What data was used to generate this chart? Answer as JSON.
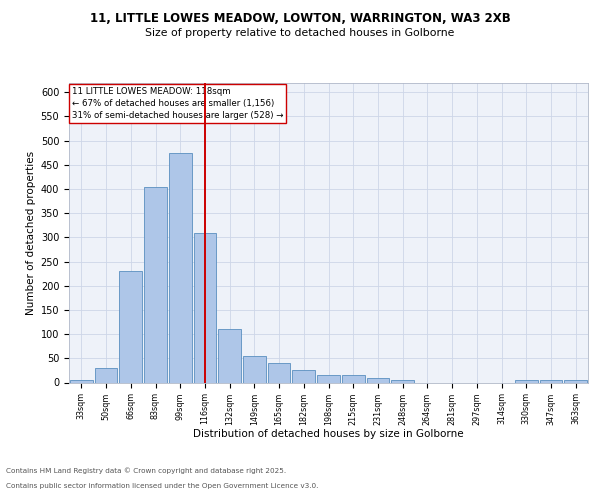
{
  "title1": "11, LITTLE LOWES MEADOW, LOWTON, WARRINGTON, WA3 2XB",
  "title2": "Size of property relative to detached houses in Golborne",
  "xlabel": "Distribution of detached houses by size in Golborne",
  "ylabel": "Number of detached properties",
  "bin_labels": [
    "33sqm",
    "50sqm",
    "66sqm",
    "83sqm",
    "99sqm",
    "116sqm",
    "132sqm",
    "149sqm",
    "165sqm",
    "182sqm",
    "198sqm",
    "215sqm",
    "231sqm",
    "248sqm",
    "264sqm",
    "281sqm",
    "297sqm",
    "314sqm",
    "330sqm",
    "347sqm",
    "363sqm"
  ],
  "bar_values": [
    5,
    30,
    230,
    405,
    475,
    310,
    110,
    55,
    40,
    25,
    15,
    15,
    10,
    5,
    0,
    0,
    0,
    0,
    5,
    5,
    5
  ],
  "bar_color": "#aec6e8",
  "bar_edge_color": "#5a8fc0",
  "vline_x": 5,
  "vline_color": "#cc0000",
  "annotation_title": "11 LITTLE LOWES MEADOW: 118sqm",
  "annotation_line1": "← 67% of detached houses are smaller (1,156)",
  "annotation_line2": "31% of semi-detached houses are larger (528) →",
  "annotation_box_color": "#ffffff",
  "annotation_box_edge": "#cc0000",
  "ylim": [
    0,
    620
  ],
  "yticks": [
    0,
    50,
    100,
    150,
    200,
    250,
    300,
    350,
    400,
    450,
    500,
    550,
    600
  ],
  "grid_color": "#cdd6e8",
  "background_color": "#eef2f9",
  "footer_line1": "Contains HM Land Registry data © Crown copyright and database right 2025.",
  "footer_line2": "Contains public sector information licensed under the Open Government Licence v3.0."
}
